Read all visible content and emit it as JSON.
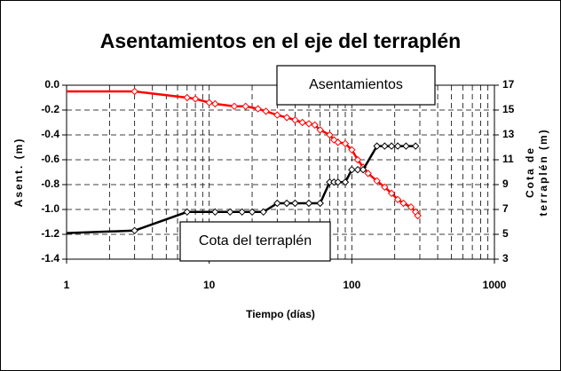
{
  "chart_data": {
    "type": "line",
    "title": "Asentamientos en el eje del terraplén",
    "xlabel": "Tiempo (días)",
    "ylabel": "Asent. (m)",
    "y2label": [
      "Cota de",
      "terraplén (m)"
    ],
    "xscale": "log",
    "xlim": [
      1,
      1000
    ],
    "xticks": [
      1,
      10,
      100,
      1000
    ],
    "ylim": [
      -1.4,
      0
    ],
    "yticks": [
      {
        "value": 0,
        "label": "0.0"
      },
      -0.2,
      -0.4,
      -0.6,
      -0.8,
      {
        "value": -1,
        "label": "-1.0"
      },
      -1.2,
      -1.4
    ],
    "y2lim": [
      3,
      17
    ],
    "y2ticks": [
      3,
      5,
      7,
      9,
      11,
      13,
      15,
      17
    ],
    "grid": true,
    "series": [
      {
        "name": "Asentamientos",
        "color": "#ff0000",
        "axis": "y",
        "x": [
          1,
          3,
          7,
          8,
          10,
          11,
          15,
          18,
          22,
          25,
          30,
          35,
          40,
          45,
          50,
          55,
          60,
          70,
          75,
          80,
          90,
          100,
          110,
          120,
          130,
          150,
          170,
          190,
          210,
          230,
          260,
          280,
          290
        ],
        "values": [
          -0.05,
          -0.05,
          -0.1,
          -0.11,
          -0.14,
          -0.15,
          -0.17,
          -0.17,
          -0.19,
          -0.21,
          -0.24,
          -0.26,
          -0.28,
          -0.3,
          -0.31,
          -0.32,
          -0.36,
          -0.4,
          -0.44,
          -0.46,
          -0.47,
          -0.52,
          -0.6,
          -0.66,
          -0.71,
          -0.77,
          -0.82,
          -0.87,
          -0.92,
          -0.95,
          -0.98,
          -1.02,
          -1.05
        ]
      },
      {
        "name": "Cota del terraplén",
        "color": "#000000",
        "axis": "y2",
        "x": [
          1,
          3,
          7,
          11,
          14,
          17,
          20,
          24,
          30,
          35,
          40,
          50,
          60,
          70,
          75,
          80,
          90,
          100,
          110,
          120,
          150,
          170,
          190,
          210,
          240,
          280
        ],
        "values": [
          5.1,
          5.3,
          6.8,
          6.8,
          6.8,
          6.8,
          6.8,
          6.8,
          7.5,
          7.5,
          7.5,
          7.5,
          7.5,
          9.2,
          9.2,
          9.2,
          9.2,
          10.2,
          10.2,
          10.2,
          12.1,
          12.1,
          12.1,
          12.1,
          12.1,
          12.1
        ]
      }
    ]
  }
}
